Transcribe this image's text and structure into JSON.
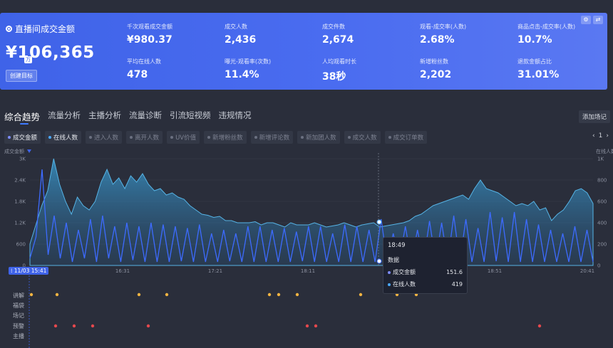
{
  "hero": {
    "title": "直播间成交金额",
    "value": "¥106,365",
    "unit": "万",
    "create_button": "创建目标"
  },
  "metrics": [
    {
      "label": "千次观看成交金额",
      "value": "¥980.37"
    },
    {
      "label": "成交人数",
      "value": "2,436"
    },
    {
      "label": "成交件数",
      "value": "2,674"
    },
    {
      "label": "观看-成交率(人数)",
      "value": "2.68%"
    },
    {
      "label": "商品点击-成交率(人数)",
      "value": "10.7%"
    },
    {
      "label": "平均在线人数",
      "value": "478"
    },
    {
      "label": "曝光-观看率(次数)",
      "value": "11.4%"
    },
    {
      "label": "人均观看时长",
      "value": "38秒"
    },
    {
      "label": "新增粉丝数",
      "value": "2,202"
    },
    {
      "label": "退款金额占比",
      "value": "31.01%"
    }
  ],
  "tabs": [
    "综合趋势",
    "流量分析",
    "主播分析",
    "流量诊断",
    "引流短视频",
    "违规情况"
  ],
  "add_button": "添加场记",
  "chips": [
    {
      "label": "成交金额",
      "on": true
    },
    {
      "label": "在线人数",
      "on": true
    },
    {
      "label": "进入人数",
      "on": false
    },
    {
      "label": "离开人数",
      "on": false
    },
    {
      "label": "UV价值",
      "on": false
    },
    {
      "label": "新增粉丝数",
      "on": false
    },
    {
      "label": "新增评论数",
      "on": false
    },
    {
      "label": "新加团人数",
      "on": false
    },
    {
      "label": "成交人数",
      "on": false
    },
    {
      "label": "成交订单数",
      "on": false
    }
  ],
  "pager": {
    "prev": "‹",
    "page": "1",
    "next": "›"
  },
  "chart_data": {
    "type": "line",
    "left_axis_title": "成交金额",
    "right_axis_title": "在线人数",
    "left_ticks": [
      "3K",
      "2.4K",
      "1.8K",
      "1.2K",
      "600",
      "0"
    ],
    "right_ticks": [
      "1K",
      "800",
      "600",
      "400",
      "200",
      "0"
    ],
    "x_ticks": [
      "16:31",
      "17:21",
      "18:11",
      "18:51",
      "20:41"
    ],
    "start_label": "11/03 15:41",
    "ylim_left": [
      0,
      3000
    ],
    "ylim_right": [
      0,
      1000
    ],
    "series": [
      {
        "name": "在线人数",
        "color": "#4aa8ff",
        "values": [
          200,
          380,
          560,
          700,
          1000,
          760,
          600,
          480,
          640,
          560,
          520,
          600,
          780,
          900,
          760,
          820,
          720,
          840,
          780,
          860,
          760,
          700,
          720,
          660,
          680,
          640,
          620,
          560,
          520,
          480,
          470,
          450,
          460,
          420,
          420,
          400,
          400,
          400,
          410,
          380,
          400,
          400,
          380,
          360,
          400,
          380,
          380,
          380,
          400,
          380,
          360,
          370,
          380,
          400,
          380,
          360,
          380,
          390,
          400,
          360,
          370,
          380,
          390,
          400,
          420,
          460,
          480,
          520,
          560,
          580,
          600,
          620,
          640,
          660,
          620,
          720,
          800,
          720,
          700,
          680,
          640,
          600,
          560,
          580,
          560,
          600,
          520,
          540,
          420,
          480,
          520,
          600,
          700,
          720,
          680,
          580
        ]
      },
      {
        "name": "成交金额",
        "color": "#3d6bff",
        "values": [
          200,
          800,
          2700,
          300,
          1400,
          200,
          1200,
          100,
          1000,
          200,
          1300,
          100,
          1400,
          200,
          1100,
          100,
          1200,
          150,
          1100,
          100,
          1200,
          100,
          1150,
          100,
          1100,
          120,
          1050,
          100,
          1150,
          100,
          900,
          100,
          1000,
          120,
          900,
          100,
          1100,
          100,
          1100,
          100,
          1000,
          100,
          1050,
          100,
          950,
          120,
          1100,
          100,
          1100,
          100,
          900,
          100,
          1150,
          100,
          1100,
          100,
          1000,
          100,
          1300,
          100,
          900,
          120,
          1100,
          100,
          1000,
          100,
          1250,
          100,
          1200,
          100,
          1400,
          100,
          1300,
          100,
          1050,
          100,
          1500,
          120,
          1350,
          100,
          1500,
          100,
          1300,
          100,
          1150,
          100,
          1000,
          100,
          900,
          100,
          1100,
          100,
          1000,
          100
        ]
      }
    ],
    "tooltip": {
      "time": "18:49",
      "group": "数据",
      "rows": [
        {
          "name": "成交金额",
          "value": "151.6",
          "color": "#7d8cff"
        },
        {
          "name": "在线人数",
          "value": "419",
          "color": "#4aa8ff"
        }
      ]
    }
  },
  "event_rows": {
    "labels": [
      "讲解",
      "福袋",
      "场记",
      "预警",
      "主播"
    ],
    "jiangjie_dots": [
      44,
      80,
      195,
      234,
      378,
      391,
      417,
      506,
      557,
      584
    ],
    "yujing_dots": [
      78,
      104,
      130,
      208,
      431,
      443,
      757
    ],
    "colors": {
      "jiangjie": "#f2b441",
      "yujing": "#e5484d"
    }
  }
}
